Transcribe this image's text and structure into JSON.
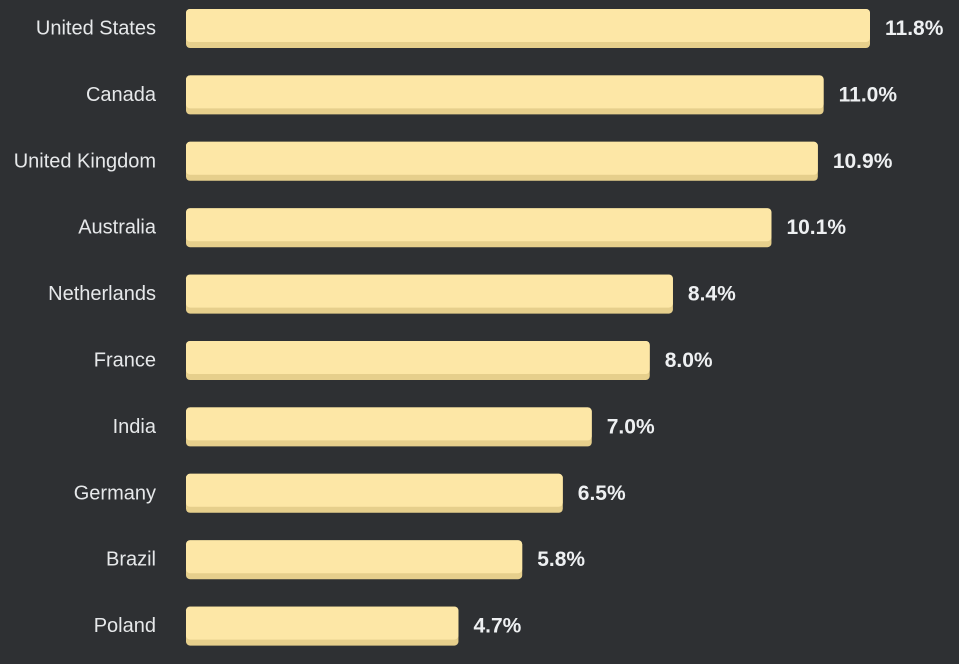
{
  "chart_data": {
    "type": "bar",
    "orientation": "horizontal",
    "categories": [
      "United States",
      "Canada",
      "United Kingdom",
      "Australia",
      "Netherlands",
      "France",
      "India",
      "Germany",
      "Brazil",
      "Poland"
    ],
    "values": [
      11.8,
      11.0,
      10.9,
      10.1,
      8.4,
      8.0,
      7.0,
      6.5,
      5.8,
      4.7
    ],
    "value_labels": [
      "11.8%",
      "11.0%",
      "10.9%",
      "10.1%",
      "8.4%",
      "8.0%",
      "7.0%",
      "6.5%",
      "5.8%",
      "4.7%"
    ],
    "xlim": [
      0,
      11.8
    ],
    "grid": false,
    "legend": "none",
    "title": "",
    "xlabel": "",
    "ylabel": ""
  },
  "colors": {
    "background": "#2e3033",
    "bar": "#fde7a6",
    "bar_shadow": "#e6cf8c",
    "category_text": "#e6e8ea",
    "value_text": "#eef0f2"
  }
}
